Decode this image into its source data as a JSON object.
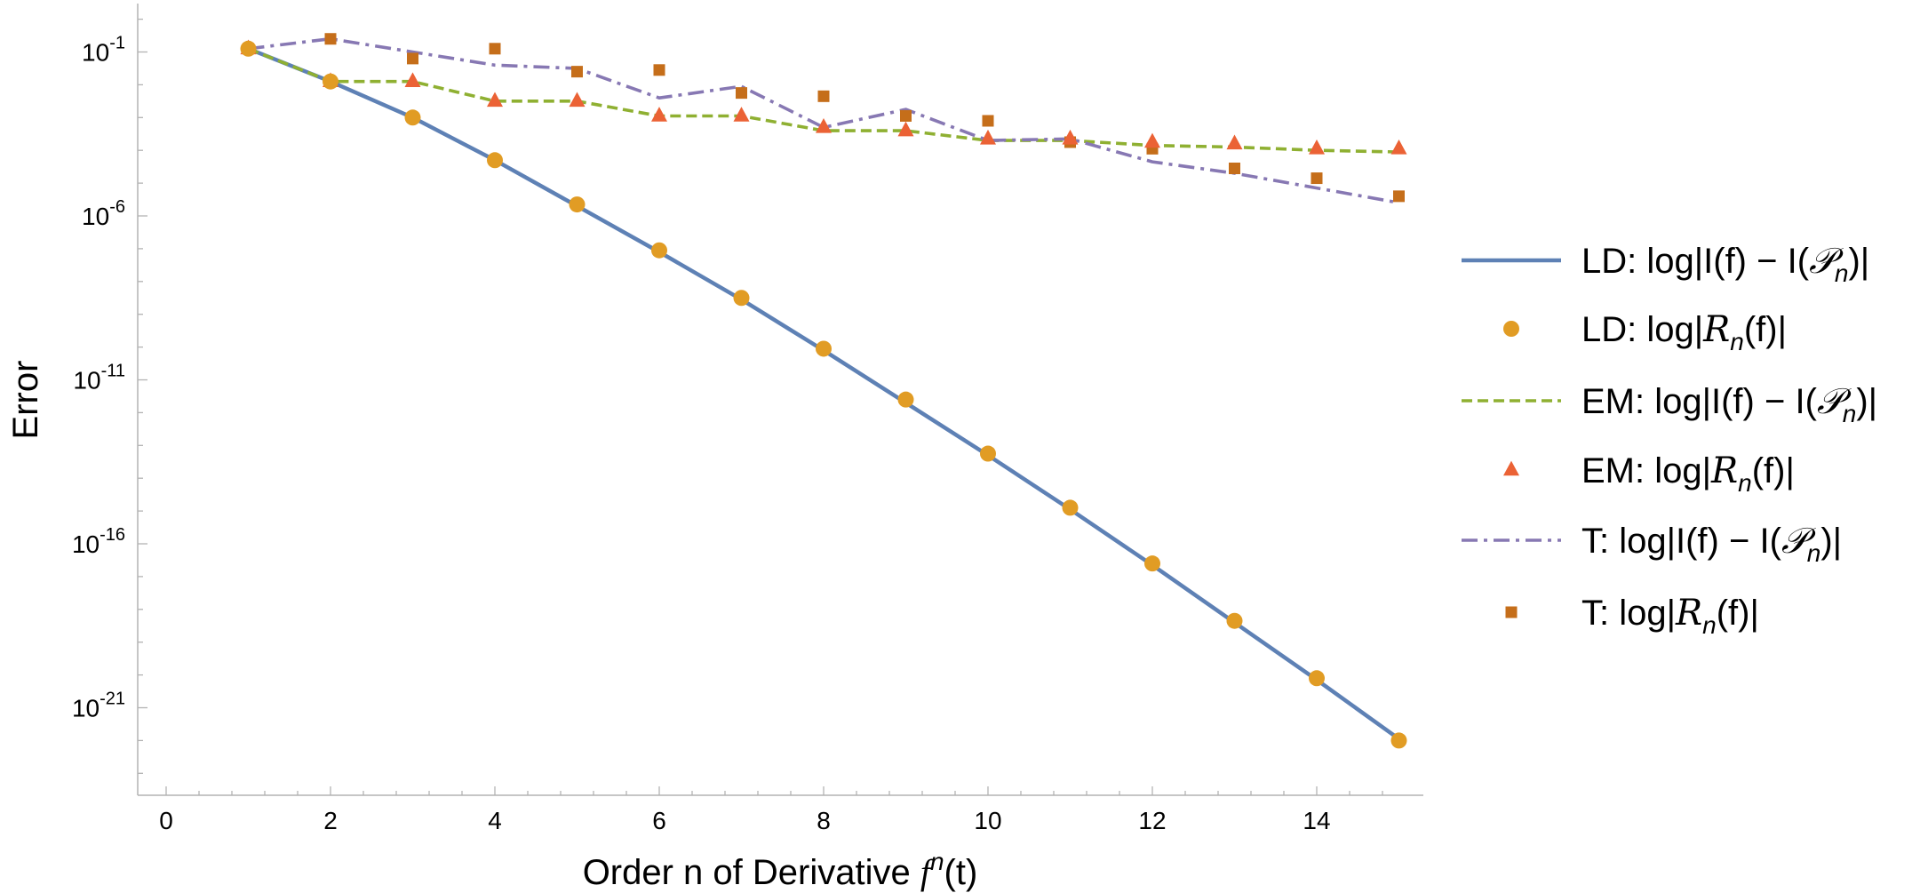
{
  "chart_data": {
    "type": "line",
    "title": "",
    "xlabel": "Order n of Derivative f^n(t)",
    "xlabel_parts": {
      "prefix": "Order n of Derivative ",
      "f": "f",
      "sup": "n",
      "suffix": "(t)"
    },
    "ylabel": "Error",
    "y_scale": "log10",
    "xlim": [
      -0.3,
      15.3
    ],
    "ylim_log10": [
      -23.7,
      0.5
    ],
    "x_ticks": [
      0,
      2,
      4,
      6,
      8,
      10,
      12,
      14
    ],
    "x_tick_labels": [
      "0",
      "2",
      "4",
      "6",
      "8",
      "10",
      "12",
      "14"
    ],
    "y_ticks_log10": [
      -1,
      -6,
      -11,
      -16,
      -21
    ],
    "y_tick_labels": [
      {
        "base": "10",
        "exp": "-1"
      },
      {
        "base": "10",
        "exp": "-6"
      },
      {
        "base": "10",
        "exp": "-11"
      },
      {
        "base": "10",
        "exp": "-16"
      },
      {
        "base": "10",
        "exp": "-21"
      }
    ],
    "x": [
      1,
      2,
      3,
      4,
      5,
      6,
      7,
      8,
      9,
      10,
      11,
      12,
      13,
      14,
      15
    ],
    "legend_position": "right",
    "series": [
      {
        "name": "LD: log|I(f) − I(Pn)|",
        "legend": {
          "prefix": "LD: log|I(f) − I(",
          "script": "𝒫",
          "sub": "n",
          "suffix": ")|"
        },
        "style": "line-solid",
        "color": "#5e81b5",
        "log10_values": [
          -0.9,
          -1.9,
          -3.0,
          -4.3,
          -5.7,
          -7.1,
          -8.55,
          -10.1,
          -11.7,
          -13.3,
          -14.95,
          -16.65,
          -18.4,
          -20.15,
          -21.95
        ]
      },
      {
        "name": "LD: log|Rn(f)|",
        "legend": {
          "prefix": "LD: log|",
          "script": "R",
          "sub": "n",
          "suffix": "(f)|"
        },
        "style": "marker-circle",
        "color": "#e19c24",
        "log10_values": [
          -0.9,
          -1.9,
          -3.0,
          -4.3,
          -5.65,
          -7.05,
          -8.5,
          -10.05,
          -11.6,
          -13.25,
          -14.9,
          -16.6,
          -18.35,
          -20.1,
          -22.0
        ]
      },
      {
        "name": "EM: log|I(f) − I(Pn)|",
        "legend": {
          "prefix": "EM: log|I(f) − I(",
          "script": "𝒫",
          "sub": "n",
          "suffix": ")|"
        },
        "style": "line-dashed",
        "color": "#8fb032",
        "log10_values": [
          -0.9,
          -1.9,
          -1.9,
          -2.5,
          -2.5,
          -2.95,
          -2.95,
          -3.4,
          -3.4,
          -3.7,
          -3.7,
          -3.85,
          -3.9,
          -4.0,
          -4.05
        ]
      },
      {
        "name": "EM: log|Rn(f)|",
        "legend": {
          "prefix": "EM: log|",
          "script": "R",
          "sub": "n",
          "suffix": "(f)|"
        },
        "style": "marker-triangle",
        "color": "#eb6235",
        "log10_values": [
          -0.9,
          -1.9,
          -1.9,
          -2.5,
          -2.5,
          -2.95,
          -2.95,
          -3.3,
          -3.4,
          -3.65,
          -3.65,
          -3.75,
          -3.8,
          -3.95,
          -3.95
        ]
      },
      {
        "name": "T: log|I(f) − I(Pn)|",
        "legend": {
          "prefix": "T: log|I(f) − I(",
          "script": "𝒫",
          "sub": "n",
          "suffix": ")|"
        },
        "style": "line-dashdot",
        "color": "#8778b3",
        "log10_values": [
          -0.9,
          -0.6,
          -1.0,
          -1.4,
          -1.5,
          -2.4,
          -2.05,
          -3.3,
          -2.75,
          -3.7,
          -3.65,
          -4.35,
          -4.7,
          -5.15,
          -5.6
        ]
      },
      {
        "name": "T: log|Rn(f)|",
        "legend": {
          "prefix": "T: log|",
          "script": "R",
          "sub": "n",
          "suffix": "(f)|"
        },
        "style": "marker-square",
        "color": "#c56e1a",
        "log10_values": [
          -0.9,
          -0.6,
          -1.2,
          -0.9,
          -1.6,
          -1.55,
          -2.25,
          -2.35,
          -2.95,
          -3.1,
          -3.75,
          -3.95,
          -4.55,
          -4.85,
          -5.4
        ]
      }
    ]
  }
}
